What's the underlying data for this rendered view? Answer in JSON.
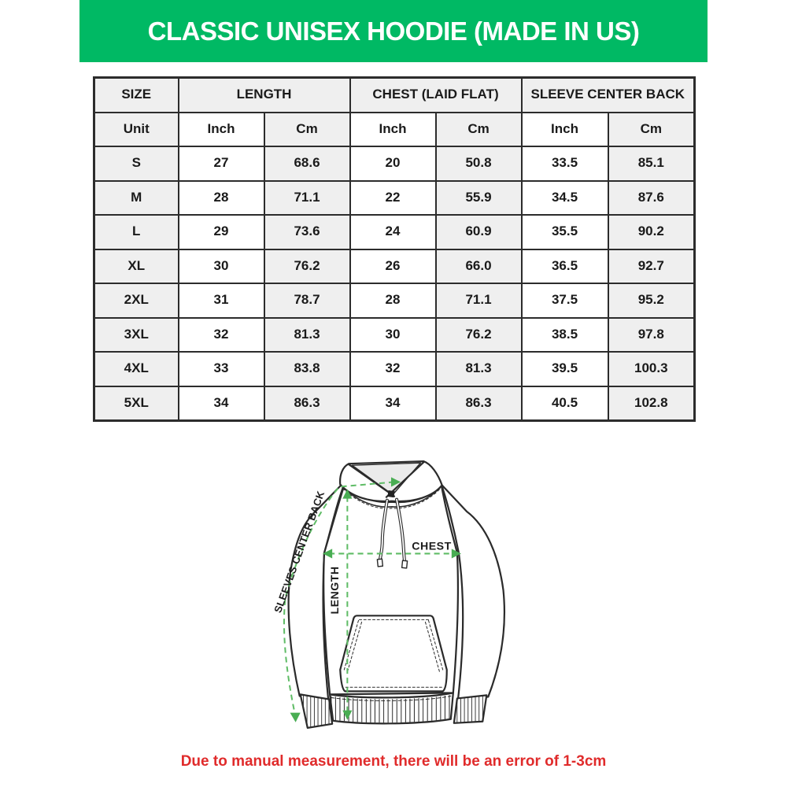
{
  "banner": {
    "title": "CLASSIC UNISEX HOODIE (MADE IN US)",
    "bg_color": "#00b964",
    "text_color": "#ffffff"
  },
  "size_chart": {
    "group_headers": [
      {
        "label": "SIZE"
      },
      {
        "label": "LENGTH"
      },
      {
        "label": "CHEST (LAID FLAT)"
      },
      {
        "label": "SLEEVE CENTER BACK"
      }
    ],
    "unit_row": [
      "Unit",
      "Inch",
      "Cm",
      "Inch",
      "Cm",
      "Inch",
      "Cm"
    ],
    "rows": [
      {
        "size": "S",
        "values": [
          "27",
          "68.6",
          "20",
          "50.8",
          "33.5",
          "85.1"
        ]
      },
      {
        "size": "M",
        "values": [
          "28",
          "71.1",
          "22",
          "55.9",
          "34.5",
          "87.6"
        ]
      },
      {
        "size": "L",
        "values": [
          "29",
          "73.6",
          "24",
          "60.9",
          "35.5",
          "90.2"
        ]
      },
      {
        "size": "XL",
        "values": [
          "30",
          "76.2",
          "26",
          "66.0",
          "36.5",
          "92.7"
        ]
      },
      {
        "size": "2XL",
        "values": [
          "31",
          "78.7",
          "28",
          "71.1",
          "37.5",
          "95.2"
        ]
      },
      {
        "size": "3XL",
        "values": [
          "32",
          "81.3",
          "30",
          "76.2",
          "38.5",
          "97.8"
        ]
      },
      {
        "size": "4XL",
        "values": [
          "33",
          "83.8",
          "32",
          "81.3",
          "39.5",
          "100.3"
        ]
      },
      {
        "size": "5XL",
        "values": [
          "34",
          "86.3",
          "34",
          "86.3",
          "40.5",
          "102.8"
        ]
      }
    ],
    "cell_colors": {
      "shaded": "#efefef",
      "plain": "#ffffff",
      "border": "#2c2c2c"
    }
  },
  "diagram": {
    "labels": {
      "sleeve": "SLEEVES CENTER BACK",
      "length": "LENGTH",
      "chest": "CHEST"
    },
    "annotation_line_color": "#5fbc66",
    "annotation_arrow_color": "#49ad53",
    "outline_color": "#2b2b2b"
  },
  "footer": {
    "note": "Due to manual measurement, there will be an error of 1-3cm",
    "color": "#e02b2b"
  }
}
